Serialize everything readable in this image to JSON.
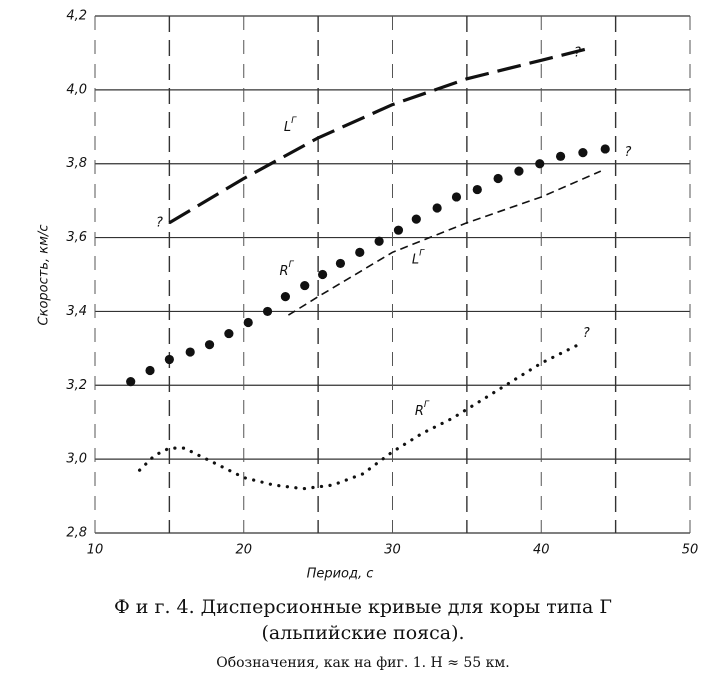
{
  "chart_data": {
    "type": "line",
    "x_label": "Период, с",
    "y_label": "Скорость, км/с",
    "xlim": [
      10,
      50
    ],
    "xticks": [
      10,
      20,
      30,
      40,
      50
    ],
    "xminorticks": [
      15,
      25,
      35,
      45
    ],
    "ylim": [
      2.8,
      4.2
    ],
    "yticks": [
      {
        "value": 2.8,
        "label": "2,8"
      },
      {
        "value": 3.0,
        "label": "3,0"
      },
      {
        "value": 3.2,
        "label": "3,2"
      },
      {
        "value": 3.4,
        "label": "3,4"
      },
      {
        "value": 3.6,
        "label": "3,6"
      },
      {
        "value": 3.8,
        "label": "3,8"
      },
      {
        "value": 4.0,
        "label": "4,0"
      },
      {
        "value": 4.2,
        "label": "4,2"
      }
    ],
    "grid": true,
    "series": [
      {
        "name": "L",
        "name_sup": "Г",
        "color": "#111",
        "style": "longdash",
        "x": [
          15,
          20,
          25,
          30,
          35,
          40,
          43
        ],
        "values": [
          3.64,
          3.76,
          3.87,
          3.96,
          4.03,
          4.08,
          4.11
        ]
      },
      {
        "name": "L",
        "name_sup": "Г",
        "color": "#111",
        "style": "dash",
        "x": [
          23,
          25,
          30,
          35,
          40,
          44
        ],
        "values": [
          3.39,
          3.44,
          3.56,
          3.64,
          3.71,
          3.78
        ]
      },
      {
        "name": "R",
        "name_sup": "Г",
        "color": "#111",
        "style": "bigdots",
        "x": [
          12.4,
          13.7,
          15.0,
          16.4,
          17.7,
          19.0,
          20.3,
          21.6,
          22.8,
          24.1,
          25.3,
          26.5,
          27.8,
          29.1,
          30.4,
          31.6,
          33.0,
          34.3,
          35.7,
          37.1,
          38.5,
          39.9,
          41.3,
          42.8,
          44.3
        ],
        "values": [
          3.21,
          3.24,
          3.27,
          3.29,
          3.31,
          3.34,
          3.37,
          3.4,
          3.44,
          3.47,
          3.5,
          3.53,
          3.56,
          3.59,
          3.62,
          3.65,
          3.68,
          3.71,
          3.73,
          3.76,
          3.78,
          3.8,
          3.82,
          3.83,
          3.84
        ]
      },
      {
        "name": "R",
        "name_sup": "Г",
        "color": "#111",
        "style": "dots",
        "x": [
          13,
          14,
          15,
          16,
          17,
          18,
          20,
          22,
          24,
          26,
          28,
          30,
          32,
          34,
          36,
          38,
          40,
          42.5
        ],
        "values": [
          2.97,
          3.01,
          3.03,
          3.03,
          3.01,
          2.99,
          2.95,
          2.93,
          2.92,
          2.93,
          2.96,
          3.02,
          3.07,
          3.11,
          3.16,
          3.21,
          3.26,
          3.31
        ]
      }
    ],
    "annotations": [
      "?",
      "?",
      "?",
      "?"
    ]
  },
  "caption": {
    "line1": "Ф и г.  4.  Дисперсионные кривые для коры типа Г",
    "line2": "(альпийские пояса).",
    "line3": "Обозначения,  как  на  фиг.  1.  H ≈ 55  км."
  }
}
